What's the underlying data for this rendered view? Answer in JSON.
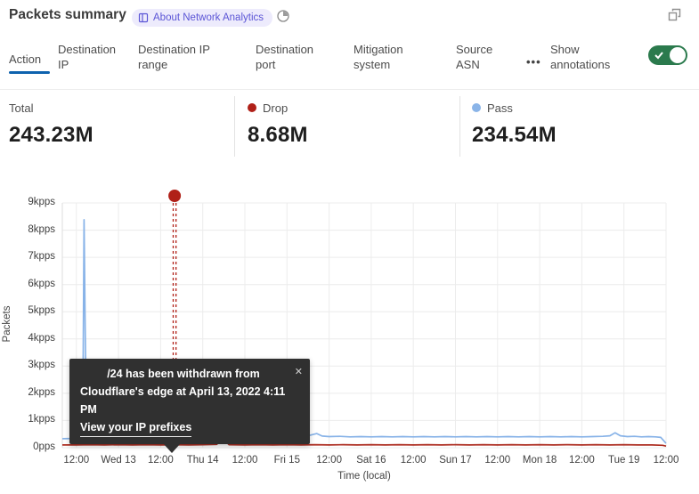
{
  "header": {
    "title": "Packets summary",
    "badge_label": "About Network Analytics"
  },
  "tabs": {
    "items": [
      {
        "label": "Action",
        "selected": true
      },
      {
        "label": "Destination IP",
        "selected": false
      },
      {
        "label": "Destination IP range",
        "selected": false
      },
      {
        "label": "Destination port",
        "selected": false
      },
      {
        "label": "Mitigation system",
        "selected": false
      },
      {
        "label": "Source ASN",
        "selected": false
      }
    ],
    "more_label": "•••",
    "annotations_label": "Show annotations",
    "annotations_toggle_on": true,
    "toggle_color": "#2b7a4d",
    "selected_underline_color": "#0e62ae"
  },
  "stats": [
    {
      "label": "Total",
      "value": "243.23M",
      "dot_color": null
    },
    {
      "label": "Drop",
      "value": "8.68M",
      "dot_color": "#b02018"
    },
    {
      "label": "Pass",
      "value": "234.54M",
      "dot_color": "#8ab4e8"
    }
  ],
  "tooltip": {
    "line1": "/24 has been withdrawn from",
    "line2": "Cloudflare's edge at April 13, 2022 4:11 PM",
    "link_label": "View your IP prefixes",
    "close_icon": "✕"
  },
  "chart_data": {
    "type": "line",
    "title": "",
    "xlabel": "Time (local)",
    "ylabel": "Packets",
    "x_ticks": [
      "12:00",
      "Wed 13",
      "12:00",
      "Thu 14",
      "12:00",
      "Fri 15",
      "12:00",
      "Sat 16",
      "12:00",
      "Sun 17",
      "12:00",
      "Mon 18",
      "12:00",
      "Tue 19",
      "12:00"
    ],
    "x_tick_hours": [
      0,
      12,
      24,
      36,
      48,
      60,
      72,
      84,
      96,
      108,
      120,
      132,
      144,
      156,
      168
    ],
    "y_ticks": [
      "0pps",
      "1kpps",
      "2kpps",
      "3kpps",
      "4kpps",
      "5kpps",
      "6kpps",
      "7kpps",
      "8kpps",
      "9kpps"
    ],
    "ylim_kpps": [
      0,
      9
    ],
    "xlim_hours": [
      -4,
      168
    ],
    "grid_on": true,
    "grid_color": "#ececec",
    "legend_position": "top-stats-row",
    "series": [
      {
        "name": "Pass",
        "color": "#88b3e8",
        "points_h_kpps": [
          [
            -4,
            0.33
          ],
          [
            -1,
            0.34
          ],
          [
            1,
            0.36
          ],
          [
            1.8,
            0.55
          ],
          [
            2.2,
            8.38
          ],
          [
            2.5,
            4.6
          ],
          [
            2.7,
            2.6
          ],
          [
            3.0,
            2.9
          ],
          [
            3.3,
            1.0
          ],
          [
            3.8,
            0.7
          ],
          [
            4.5,
            0.6
          ],
          [
            5.5,
            0.52
          ],
          [
            7,
            0.48
          ],
          [
            9,
            0.45
          ],
          [
            11,
            0.43
          ],
          [
            13,
            0.45
          ],
          [
            15,
            0.42
          ],
          [
            17,
            0.44
          ],
          [
            19,
            0.42
          ],
          [
            21,
            0.46
          ],
          [
            23,
            0.5
          ],
          [
            24.5,
            0.58
          ],
          [
            25.5,
            0.46
          ],
          [
            27,
            0.42
          ],
          [
            29,
            0.4
          ],
          [
            31,
            0.41
          ],
          [
            33,
            0.39
          ],
          [
            35,
            0.41
          ],
          [
            37,
            0.4
          ],
          [
            39,
            0.42
          ],
          [
            41,
            0.4
          ],
          [
            43,
            0.41
          ],
          [
            45,
            0.42
          ],
          [
            47,
            0.44
          ],
          [
            48.8,
            0.55
          ],
          [
            50,
            0.44
          ],
          [
            52,
            0.41
          ],
          [
            54,
            0.42
          ],
          [
            56,
            0.4
          ],
          [
            58,
            0.41
          ],
          [
            60,
            0.4
          ],
          [
            62,
            0.41
          ],
          [
            64,
            0.42
          ],
          [
            66,
            0.44
          ],
          [
            68.5,
            0.52
          ],
          [
            70,
            0.43
          ],
          [
            72,
            0.41
          ],
          [
            75,
            0.42
          ],
          [
            78,
            0.4
          ],
          [
            81,
            0.41
          ],
          [
            84,
            0.4
          ],
          [
            87,
            0.41
          ],
          [
            90,
            0.4
          ],
          [
            93,
            0.41
          ],
          [
            96,
            0.4
          ],
          [
            99,
            0.41
          ],
          [
            102,
            0.4
          ],
          [
            105,
            0.41
          ],
          [
            108,
            0.4
          ],
          [
            111,
            0.41
          ],
          [
            114,
            0.4
          ],
          [
            117,
            0.41
          ],
          [
            120,
            0.4
          ],
          [
            123,
            0.41
          ],
          [
            126,
            0.4
          ],
          [
            129,
            0.41
          ],
          [
            132,
            0.4
          ],
          [
            135,
            0.41
          ],
          [
            138,
            0.4
          ],
          [
            141,
            0.41
          ],
          [
            144,
            0.4
          ],
          [
            147,
            0.41
          ],
          [
            150,
            0.42
          ],
          [
            152,
            0.44
          ],
          [
            153.5,
            0.55
          ],
          [
            155,
            0.44
          ],
          [
            157,
            0.41
          ],
          [
            159,
            0.42
          ],
          [
            161,
            0.4
          ],
          [
            163,
            0.41
          ],
          [
            165,
            0.4
          ],
          [
            166.5,
            0.38
          ],
          [
            168,
            0.16
          ]
        ]
      },
      {
        "name": "Drop",
        "color": "#ad2e22",
        "points_h_kpps": [
          [
            -4,
            0.1
          ],
          [
            0,
            0.1
          ],
          [
            4,
            0.11
          ],
          [
            8,
            0.1
          ],
          [
            12,
            0.11
          ],
          [
            16,
            0.1
          ],
          [
            20,
            0.11
          ],
          [
            24,
            0.1
          ],
          [
            28,
            0.11
          ],
          [
            32,
            0.1
          ],
          [
            36,
            0.11
          ],
          [
            40,
            0.12
          ],
          [
            41.7,
            0.34
          ],
          [
            43.5,
            0.11
          ],
          [
            48,
            0.1
          ],
          [
            52,
            0.11
          ],
          [
            56,
            0.1
          ],
          [
            60,
            0.11
          ],
          [
            64,
            0.1
          ],
          [
            68,
            0.11
          ],
          [
            72,
            0.1
          ],
          [
            76,
            0.11
          ],
          [
            80,
            0.1
          ],
          [
            84,
            0.11
          ],
          [
            88,
            0.1
          ],
          [
            92,
            0.11
          ],
          [
            96,
            0.1
          ],
          [
            100,
            0.11
          ],
          [
            104,
            0.1
          ],
          [
            108,
            0.11
          ],
          [
            112,
            0.1
          ],
          [
            116,
            0.11
          ],
          [
            120,
            0.1
          ],
          [
            124,
            0.11
          ],
          [
            128,
            0.1
          ],
          [
            132,
            0.11
          ],
          [
            136,
            0.1
          ],
          [
            140,
            0.11
          ],
          [
            144,
            0.1
          ],
          [
            148,
            0.11
          ],
          [
            152,
            0.1
          ],
          [
            156,
            0.11
          ],
          [
            160,
            0.1
          ],
          [
            164,
            0.1
          ],
          [
            167,
            0.09
          ],
          [
            168,
            0.06
          ]
        ]
      }
    ],
    "annotation": {
      "x_hours": 28.0,
      "marker_color": "#b02018",
      "style": "double-dashed-vertical-line-with-dot"
    }
  }
}
